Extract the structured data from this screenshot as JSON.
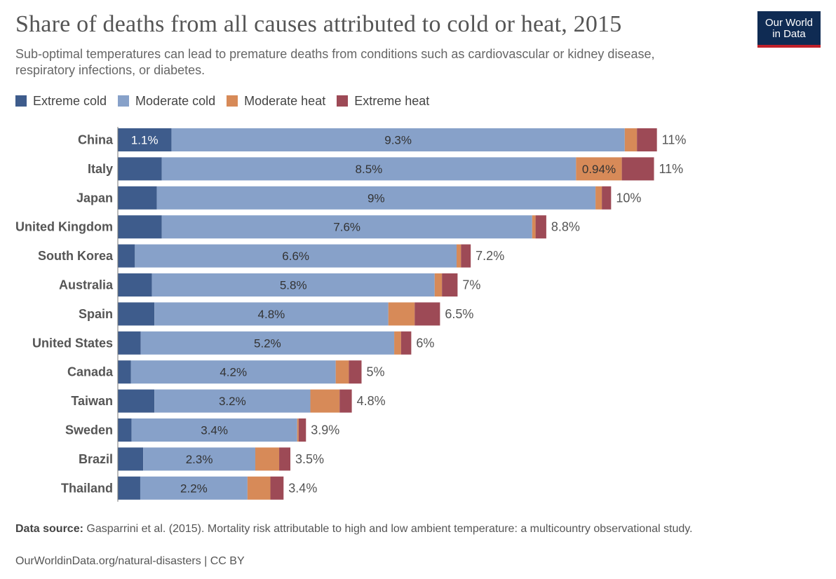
{
  "header": {
    "title": "Share of deaths from all causes attributed to cold or heat, 2015",
    "subtitle": "Sub-optimal temperatures can lead to premature deaths from conditions such as cardiovascular or kidney disease, respiratory infections, or diabetes.",
    "logo_line1": "Our World",
    "logo_line2": "in Data"
  },
  "legend": [
    {
      "label": "Extreme cold",
      "color": "#3e5c8c"
    },
    {
      "label": "Moderate cold",
      "color": "#87a1c9"
    },
    {
      "label": "Moderate heat",
      "color": "#d78a58"
    },
    {
      "label": "Extreme heat",
      "color": "#9d4a56"
    }
  ],
  "footer": {
    "source_label": "Data source:",
    "source_text": "Gasparrini et al. (2015). Mortality risk attributable to high and low ambient temperature: a multicountry observational study.",
    "url_license": "OurWorldinData.org/natural-disasters | CC BY"
  },
  "chart_data": {
    "type": "bar",
    "orientation": "horizontal",
    "stacked": true,
    "unit": "%",
    "xlim": [
      0,
      11.5
    ],
    "grid": false,
    "legend_position": "top-left",
    "categories": [
      "China",
      "Italy",
      "Japan",
      "United Kingdom",
      "South Korea",
      "Australia",
      "Spain",
      "United States",
      "Canada",
      "Taiwan",
      "Sweden",
      "Brazil",
      "Thailand"
    ],
    "series": [
      {
        "name": "Extreme cold",
        "color": "#3e5c8c",
        "values": [
          1.1,
          0.9,
          0.8,
          0.9,
          0.35,
          0.7,
          0.75,
          0.47,
          0.27,
          0.75,
          0.28,
          0.52,
          0.46
        ]
      },
      {
        "name": "Moderate cold",
        "color": "#87a1c9",
        "values": [
          9.3,
          8.5,
          9.0,
          7.6,
          6.6,
          5.8,
          4.8,
          5.2,
          4.2,
          3.2,
          3.4,
          2.3,
          2.2
        ]
      },
      {
        "name": "Moderate heat",
        "color": "#d78a58",
        "values": [
          0.25,
          0.94,
          0.13,
          0.07,
          0.09,
          0.15,
          0.54,
          0.14,
          0.27,
          0.6,
          0.03,
          0.49,
          0.47
        ]
      },
      {
        "name": "Extreme heat",
        "color": "#9d4a56",
        "values": [
          0.41,
          0.66,
          0.19,
          0.22,
          0.2,
          0.32,
          0.52,
          0.21,
          0.26,
          0.25,
          0.15,
          0.23,
          0.27
        ]
      }
    ],
    "segment_labels": [
      [
        "1.1%",
        "9.3%",
        "",
        ""
      ],
      [
        "",
        "8.5%",
        "0.94%",
        ""
      ],
      [
        "",
        "9%",
        "",
        ""
      ],
      [
        "",
        "7.6%",
        "",
        ""
      ],
      [
        "",
        "6.6%",
        "",
        ""
      ],
      [
        "",
        "5.8%",
        "",
        ""
      ],
      [
        "",
        "4.8%",
        "",
        ""
      ],
      [
        "",
        "5.2%",
        "",
        ""
      ],
      [
        "",
        "4.2%",
        "",
        ""
      ],
      [
        "",
        "3.2%",
        "",
        ""
      ],
      [
        "",
        "3.4%",
        "",
        ""
      ],
      [
        "",
        "2.3%",
        "",
        ""
      ],
      [
        "",
        "2.2%",
        "",
        ""
      ]
    ],
    "total_labels": [
      "11%",
      "11%",
      "10%",
      "8.8%",
      "7.2%",
      "7%",
      "6.5%",
      "6%",
      "5%",
      "4.8%",
      "3.9%",
      "3.5%",
      "3.4%"
    ]
  }
}
